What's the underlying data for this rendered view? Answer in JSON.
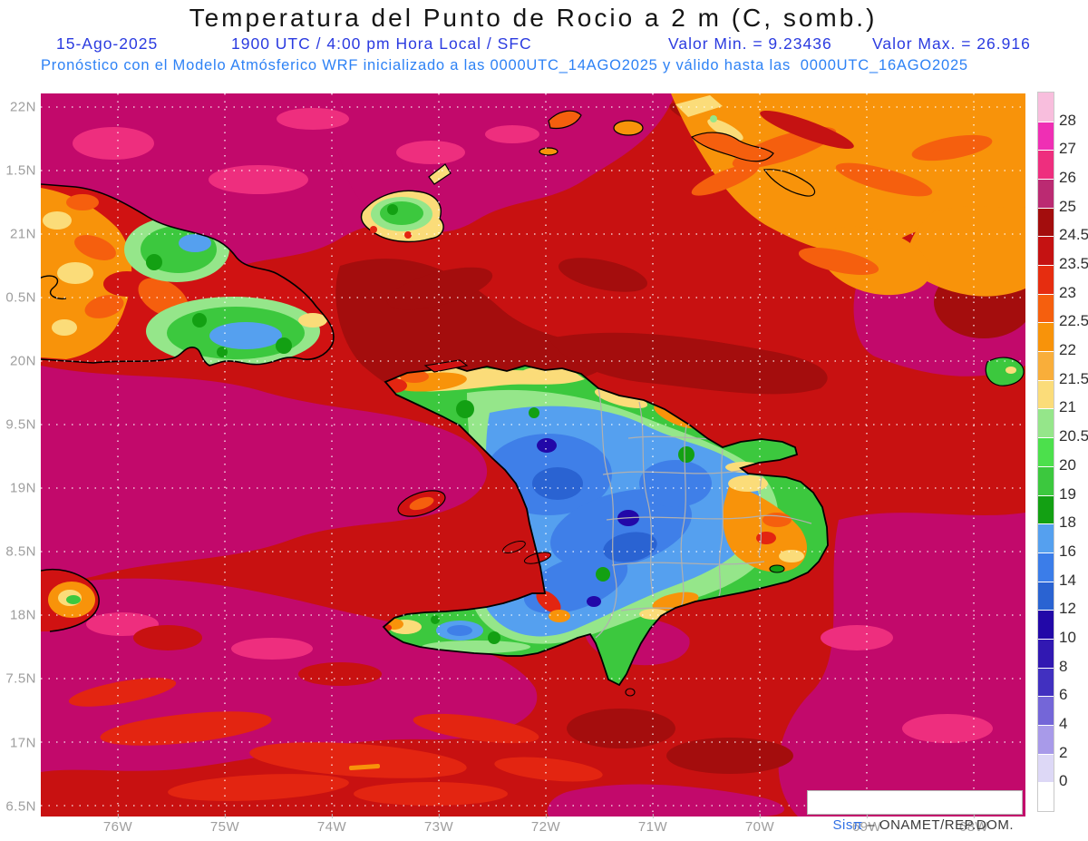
{
  "header": {
    "title": "Temperatura del Punto de Rocio a 2 m (C, somb.)",
    "date": "15-Ago-2025",
    "time": "1900 UTC / 4:00 pm Hora Local / SFC",
    "valor_min": "Valor Min. = 9.23436",
    "valor_max": "Valor Max. = 26.916",
    "forecast": "Pronóstico con el Modelo Atmósferico WRF inicializado a las 0000UTC_14AGO2025 y válido hasta las  0000UTC_16AGO2025"
  },
  "map": {
    "y_ticks": [
      "22N",
      "1.5N",
      "21N",
      "0.5N",
      "20N",
      "9.5N",
      "19N",
      "8.5N",
      "18N",
      "7.5N",
      "17N",
      "6.5N"
    ],
    "x_ticks": [
      "76W",
      "75W",
      "74W",
      "73W",
      "72W",
      "71W",
      "70W",
      "69W",
      "68W"
    ],
    "watermark_brand": "Sisπ",
    "watermark_suffix": " – ONAMET/REP.DOM."
  },
  "legend": {
    "units": "C",
    "bands": [
      {
        "color": "#f8bedd",
        "label": "28"
      },
      {
        "color": "#ef2fb4",
        "label": "27"
      },
      {
        "color": "#ee2e7e",
        "label": "26"
      },
      {
        "color": "#bb2a72",
        "label": "25"
      },
      {
        "color": "#a30d0d",
        "label": "24.5"
      },
      {
        "color": "#c51212",
        "label": "23.5"
      },
      {
        "color": "#e62d10",
        "label": "23"
      },
      {
        "color": "#f55f0e",
        "label": "22.5"
      },
      {
        "color": "#f8930a",
        "label": "22"
      },
      {
        "color": "#f9ae3a",
        "label": "21.5"
      },
      {
        "color": "#fbdc79",
        "label": "21"
      },
      {
        "color": "#95e68a",
        "label": "20.5"
      },
      {
        "color": "#4ce04c",
        "label": "20"
      },
      {
        "color": "#3cc83e",
        "label": "19"
      },
      {
        "color": "#13a013",
        "label": "18"
      },
      {
        "color": "#55a0ef",
        "label": "16"
      },
      {
        "color": "#3b7de9",
        "label": "14"
      },
      {
        "color": "#2a63d2",
        "label": "12"
      },
      {
        "color": "#2208a8",
        "label": "10"
      },
      {
        "color": "#3118b2",
        "label": "8"
      },
      {
        "color": "#4130c0",
        "label": "6"
      },
      {
        "color": "#7466d8",
        "label": "4"
      },
      {
        "color": "#a89ae9",
        "label": "2"
      },
      {
        "color": "#ddd8f6",
        "label": "0"
      },
      {
        "color": "#ffffff",
        "label": ""
      }
    ]
  }
}
